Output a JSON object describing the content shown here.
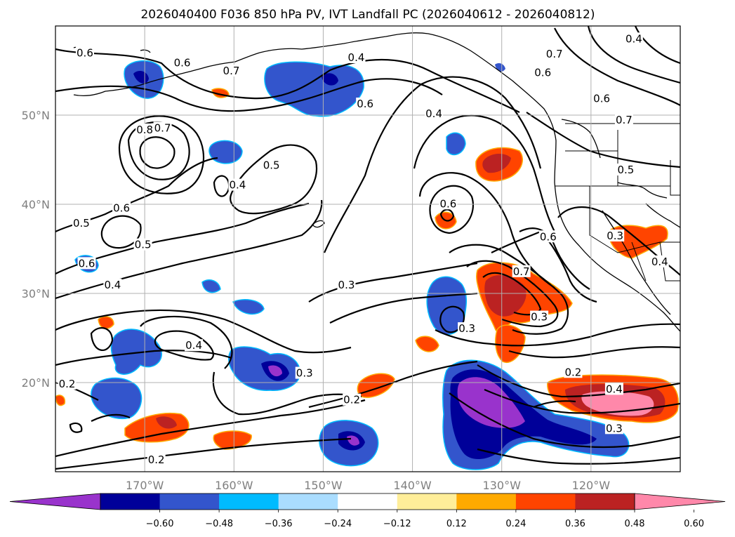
{
  "title": "2026040400 F036 850 hPa PV, IVT Landfall PC (2026040612 - 2026040812)",
  "map": {
    "lon_range": [
      -180,
      -110
    ],
    "lat_range": [
      10,
      60
    ],
    "lat_labels": [
      {
        "lat": 50,
        "text": "50°N"
      },
      {
        "lat": 40,
        "text": "40°N"
      },
      {
        "lat": 30,
        "text": "30°N"
      },
      {
        "lat": 20,
        "text": "20°N"
      }
    ],
    "lon_labels": [
      {
        "lon": -170,
        "text": "170°W"
      },
      {
        "lon": -160,
        "text": "160°W"
      },
      {
        "lon": -150,
        "text": "150°W"
      },
      {
        "lon": -140,
        "text": "140°W"
      },
      {
        "lon": -130,
        "text": "130°W"
      },
      {
        "lon": -120,
        "text": "120°W"
      }
    ],
    "gridlines": true,
    "land_outline_color": "#000000"
  },
  "colorbar": {
    "extend": "both",
    "colors": [
      "#9933cc",
      "#000099",
      "#3355cc",
      "#00bbff",
      "#aaddff",
      "#ffffff",
      "#ffee99",
      "#ffaa00",
      "#ff4400",
      "#bb2222",
      "#ff88aa"
    ],
    "tick_labels": [
      "−0.60",
      "−0.48",
      "−0.36",
      "−0.24",
      "−0.12",
      "0.12",
      "0.24",
      "0.36",
      "0.48",
      "0.60"
    ]
  },
  "contour_labels": [
    {
      "text": "0.6",
      "lon": -176.7,
      "lat": 56.8
    },
    {
      "text": "0.6",
      "lon": -165.8,
      "lat": 55.7
    },
    {
      "text": "0.7",
      "lon": -160.3,
      "lat": 54.8
    },
    {
      "text": "0.8",
      "lon": -170.0,
      "lat": 48.2
    },
    {
      "text": "0.7",
      "lon": -168.0,
      "lat": 48.4
    },
    {
      "text": "0.4",
      "lon": -159.6,
      "lat": 42.0
    },
    {
      "text": "0.5",
      "lon": -155.8,
      "lat": 44.2
    },
    {
      "text": "0.6",
      "lon": -172.6,
      "lat": 39.4
    },
    {
      "text": "0.5",
      "lon": -177.1,
      "lat": 37.7
    },
    {
      "text": "0.5",
      "lon": -170.2,
      "lat": 35.3
    },
    {
      "text": "0.6",
      "lon": -176.5,
      "lat": 33.2
    },
    {
      "text": "0.4",
      "lon": -173.6,
      "lat": 30.8
    },
    {
      "text": "0.4",
      "lon": -146.3,
      "lat": 56.3
    },
    {
      "text": "0.6",
      "lon": -145.3,
      "lat": 51.1
    },
    {
      "text": "0.4",
      "lon": -137.6,
      "lat": 50.0
    },
    {
      "text": "0.7",
      "lon": -124.1,
      "lat": 56.7
    },
    {
      "text": "0.6",
      "lon": -125.4,
      "lat": 54.6
    },
    {
      "text": "0.6",
      "lon": -118.8,
      "lat": 51.7
    },
    {
      "text": "0.7",
      "lon": -116.3,
      "lat": 49.3
    },
    {
      "text": "0.5",
      "lon": -116.1,
      "lat": 43.7
    },
    {
      "text": "0.4",
      "lon": -115.2,
      "lat": 58.4
    },
    {
      "text": "0.6",
      "lon": -136.0,
      "lat": 39.9
    },
    {
      "text": "0.6",
      "lon": -124.8,
      "lat": 36.2
    },
    {
      "text": "0.7",
      "lon": -127.8,
      "lat": 32.3
    },
    {
      "text": "0.3",
      "lon": -117.3,
      "lat": 36.3
    },
    {
      "text": "0.4",
      "lon": -112.3,
      "lat": 33.4
    },
    {
      "text": "0.3",
      "lon": -147.4,
      "lat": 30.8
    },
    {
      "text": "0.3",
      "lon": -133.9,
      "lat": 25.9
    },
    {
      "text": "0.3",
      "lon": -125.8,
      "lat": 27.2
    },
    {
      "text": "0.4",
      "lon": -164.5,
      "lat": 24.0
    },
    {
      "text": "0.3",
      "lon": -152.1,
      "lat": 20.9
    },
    {
      "text": "0.2",
      "lon": -146.8,
      "lat": 17.9
    },
    {
      "text": "0.2",
      "lon": -178.7,
      "lat": 19.7
    },
    {
      "text": "0.2",
      "lon": -122.0,
      "lat": 21.0
    },
    {
      "text": "0.4",
      "lon": -117.4,
      "lat": 19.1
    },
    {
      "text": "0.3",
      "lon": -117.4,
      "lat": 14.7
    },
    {
      "text": "0.2",
      "lon": -168.7,
      "lat": 11.2
    }
  ]
}
